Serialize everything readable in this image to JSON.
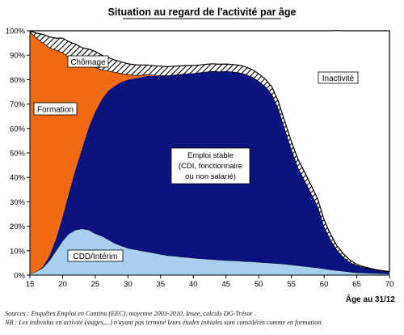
{
  "chart_data": {
    "type": "area",
    "stacked": true,
    "title": "Situation au regard de l'activité par âge",
    "xlabel": "Âge au 31/12",
    "xlim": [
      15,
      70
    ],
    "ylim": [
      0,
      100
    ],
    "x_ticks": [
      "15",
      "20",
      "25",
      "30",
      "35",
      "40",
      "45",
      "50",
      "55",
      "60",
      "65",
      "70"
    ],
    "y_ticks": [
      "0%",
      "10%",
      "20%",
      "30%",
      "40%",
      "50%",
      "60%",
      "70%",
      "80%",
      "90%",
      "100%"
    ],
    "grid": false,
    "x": [
      15,
      16,
      17,
      18,
      19,
      20,
      21,
      22,
      23,
      24,
      25,
      26,
      27,
      28,
      29,
      30,
      31,
      32,
      33,
      34,
      35,
      36,
      37,
      38,
      39,
      40,
      41,
      42,
      43,
      44,
      45,
      46,
      47,
      48,
      49,
      50,
      51,
      52,
      53,
      54,
      55,
      56,
      57,
      58,
      59,
      60,
      61,
      62,
      63,
      64,
      65,
      66,
      67,
      68,
      69,
      70
    ],
    "series": [
      {
        "name": "CDD/Intérim",
        "color": "#a9cff0",
        "values": [
          0.5,
          1.5,
          3,
          6,
          10,
          14,
          17,
          18.5,
          19,
          18.5,
          17,
          16,
          14.5,
          13,
          12,
          11,
          10.5,
          10,
          9.5,
          9,
          8.5,
          8,
          7.8,
          7.5,
          7.3,
          7,
          6.8,
          6.6,
          6.4,
          6.2,
          6,
          5.9,
          5.8,
          5.6,
          5.5,
          5.3,
          5.1,
          4.9,
          4.7,
          4.5,
          4.2,
          3.9,
          3.6,
          3.3,
          3,
          2.6,
          2.2,
          1.9,
          1.6,
          1.3,
          1,
          0.9,
          0.8,
          0.7,
          0.6,
          0.5
        ]
      },
      {
        "name": "Emploi stable (CDI, fonctionnaire ou non salarié)",
        "color": "#0a1380",
        "values": [
          0,
          0,
          0.5,
          2,
          5,
          10,
          17,
          25,
          33,
          42,
          50,
          56,
          61,
          64.5,
          67,
          69,
          70,
          71,
          72,
          72.5,
          73,
          73.5,
          74,
          74.5,
          75,
          75.5,
          76,
          76.5,
          77,
          77,
          77.3,
          77.2,
          77,
          76.5,
          75.5,
          74,
          72,
          69,
          63,
          55,
          47,
          40,
          35,
          30,
          25,
          17,
          12,
          8,
          5.5,
          3.8,
          2.8,
          2.2,
          1.7,
          1.3,
          1,
          0.8
        ]
      },
      {
        "name": "Formation",
        "color": "#f06a12",
        "values": [
          99,
          95.5,
          91.5,
          85,
          77,
          67,
          55,
          44,
          34,
          25,
          18,
          12,
          8,
          5.5,
          3.5,
          2,
          1.3,
          0.8,
          0.5,
          0.3,
          0.2,
          0.1,
          0.1,
          0.1,
          0.1,
          0,
          0,
          0,
          0,
          0,
          0,
          0,
          0,
          0,
          0,
          0,
          0,
          0,
          0,
          0,
          0,
          0,
          0,
          0,
          0,
          0,
          0,
          0,
          0,
          0,
          0,
          0,
          0,
          0,
          0,
          0
        ]
      },
      {
        "name": "Chômage",
        "color": "#ffffff",
        "values": [
          0.5,
          2,
          3.5,
          4.5,
          5,
          6,
          6.5,
          7,
          7,
          7,
          6.5,
          6,
          5.5,
          5,
          4.8,
          4.5,
          4.3,
          4.2,
          4,
          3.9,
          3.8,
          3.7,
          3.6,
          3.5,
          3.4,
          3.3,
          3.2,
          3.2,
          3.1,
          3.1,
          3.1,
          3.1,
          3.1,
          3.1,
          3.1,
          3.1,
          3.1,
          3.2,
          3.3,
          3.4,
          3.5,
          3.6,
          3.7,
          3.6,
          3.4,
          3,
          2.5,
          2,
          1.5,
          1,
          0.6,
          0.4,
          0.3,
          0.2,
          0.2,
          0.2
        ]
      },
      {
        "name": "Inactivité",
        "color": "#ffffff",
        "values": [
          0,
          1,
          1.5,
          2.5,
          3,
          3,
          4.5,
          5.5,
          7,
          7.5,
          8.5,
          10,
          11,
          12,
          12.7,
          13.5,
          13.9,
          14,
          14,
          14.3,
          14.5,
          14.7,
          14.5,
          14.4,
          14.2,
          14.2,
          14,
          13.7,
          13.5,
          13.7,
          13.6,
          13.8,
          14.1,
          14.8,
          15.9,
          17.6,
          19.8,
          22.9,
          29,
          37.1,
          45.3,
          52.5,
          57.7,
          63.1,
          68.6,
          77.4,
          83.3,
          88.2,
          91.4,
          93.9,
          95.6,
          96.5,
          97.2,
          97.8,
          98.2,
          98.5
        ]
      }
    ],
    "area_labels": {
      "chomage": "Chômage",
      "inactivite": "Inactivité",
      "formation": "Formation",
      "emploi_stable": [
        "Emploi stable",
        "(CDI, fonctionnaire",
        "ou non salarié)"
      ],
      "cdd": "CDD/Intérim"
    }
  },
  "notes": {
    "sources": "Sources : Enquêtes Emploi en Continu (EEC), moyenne 2003-2010, Insee, calculs DG-Trésor .",
    "nb": "NB : Les individus en activité (stages,...) n'ayant pas terminé leurs études initiales sont considérés comme en formation."
  },
  "colors": {
    "axis": "#000000",
    "hatch": "#000000"
  }
}
